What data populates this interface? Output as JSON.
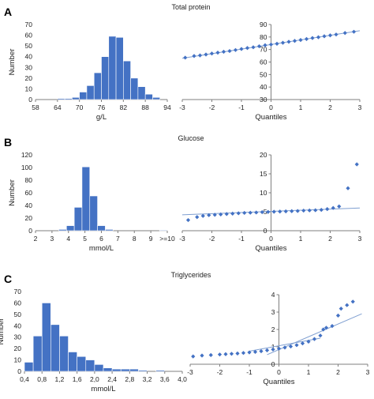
{
  "colors": {
    "bar": "#4472c4",
    "bar_edge": "#ffffff",
    "point": "#4472c4",
    "line": "#7f9fd1",
    "axis": "#7f7f7f"
  },
  "panels": [
    {
      "label": "A",
      "title": "Total protein"
    },
    {
      "label": "B",
      "title": "Glucose"
    },
    {
      "label": "C",
      "title": "Triglycerides"
    }
  ],
  "chart_data": [
    {
      "type": "bar",
      "panel": "A",
      "xlabel": "g/L",
      "ylabel": "Number",
      "ylim": [
        0,
        70
      ],
      "yticks": [
        0,
        10,
        20,
        30,
        40,
        50,
        60,
        70
      ],
      "xtick_labels": [
        "58",
        "64",
        "70",
        "76",
        "82",
        "88",
        "94"
      ],
      "bin_start": 58,
      "bin_width": 2,
      "values": [
        0,
        0,
        0,
        1,
        1,
        2,
        7,
        13,
        25,
        40,
        59,
        58,
        36,
        20,
        12,
        5,
        2,
        0
      ]
    },
    {
      "type": "scatter",
      "panel": "A",
      "xlabel": "Quantiles",
      "xlim": [
        -3,
        3
      ],
      "ylim": [
        30,
        90
      ],
      "xticks": [
        -3,
        -2,
        -1,
        0,
        1,
        2,
        3
      ],
      "yticks": [
        30,
        40,
        50,
        60,
        70,
        80,
        90
      ],
      "points": [
        [
          -2.9,
          63.5
        ],
        [
          -2.6,
          64.8
        ],
        [
          -2.4,
          65.3
        ],
        [
          -2.2,
          66.0
        ],
        [
          -2.0,
          66.8
        ],
        [
          -1.8,
          67.5
        ],
        [
          -1.6,
          68.2
        ],
        [
          -1.4,
          68.8
        ],
        [
          -1.2,
          69.6
        ],
        [
          -1.0,
          70.4
        ],
        [
          -0.8,
          71.2
        ],
        [
          -0.6,
          71.8
        ],
        [
          -0.4,
          72.6
        ],
        [
          -0.2,
          73.4
        ],
        [
          0.0,
          74.0
        ],
        [
          0.2,
          74.6
        ],
        [
          0.4,
          75.4
        ],
        [
          0.6,
          76.2
        ],
        [
          0.8,
          76.9
        ],
        [
          1.0,
          77.6
        ],
        [
          1.2,
          78.4
        ],
        [
          1.4,
          79.2
        ],
        [
          1.6,
          79.8
        ],
        [
          1.8,
          80.6
        ],
        [
          2.0,
          81.3
        ],
        [
          2.2,
          82.0
        ],
        [
          2.5,
          83.2
        ],
        [
          2.8,
          84.2
        ]
      ],
      "fit_line": [
        [
          -3,
          63.0
        ],
        [
          3,
          85.0
        ]
      ]
    },
    {
      "type": "bar",
      "panel": "B",
      "xlabel": "mmol/L",
      "ylabel": "Number",
      "ylim": [
        0,
        120
      ],
      "yticks": [
        0,
        20,
        40,
        60,
        80,
        100,
        120
      ],
      "xtick_labels": [
        "2",
        "3",
        "4",
        "5",
        "6",
        "7",
        "8",
        "9",
        ">=10"
      ],
      "bin_start": 2,
      "bin_width": 0.5,
      "values": [
        0,
        0,
        0,
        2,
        8,
        37,
        101,
        55,
        8,
        2,
        0,
        0,
        0,
        0,
        0,
        0,
        1
      ]
    },
    {
      "type": "scatter",
      "panel": "B",
      "xlabel": "Quantiles",
      "xlim": [
        -3,
        3
      ],
      "ylim": [
        0,
        20
      ],
      "xticks": [
        -3,
        -2,
        -1,
        0,
        1,
        2,
        3
      ],
      "yticks": [
        0,
        5,
        10,
        15,
        20
      ],
      "points": [
        [
          -2.8,
          2.8
        ],
        [
          -2.5,
          3.6
        ],
        [
          -2.3,
          3.9
        ],
        [
          -2.1,
          4.1
        ],
        [
          -1.9,
          4.2
        ],
        [
          -1.7,
          4.3
        ],
        [
          -1.5,
          4.4
        ],
        [
          -1.3,
          4.5
        ],
        [
          -1.1,
          4.6
        ],
        [
          -0.9,
          4.7
        ],
        [
          -0.7,
          4.75
        ],
        [
          -0.5,
          4.8
        ],
        [
          -0.3,
          4.9
        ],
        [
          -0.1,
          4.95
        ],
        [
          0.1,
          5.0
        ],
        [
          0.3,
          5.05
        ],
        [
          0.5,
          5.1
        ],
        [
          0.7,
          5.15
        ],
        [
          0.9,
          5.2
        ],
        [
          1.1,
          5.3
        ],
        [
          1.3,
          5.35
        ],
        [
          1.5,
          5.4
        ],
        [
          1.7,
          5.5
        ],
        [
          1.9,
          5.7
        ],
        [
          2.1,
          6.0
        ],
        [
          2.3,
          6.4
        ],
        [
          2.6,
          11.2
        ],
        [
          2.9,
          17.5
        ]
      ],
      "fit_line": [
        [
          -3,
          4.2
        ],
        [
          3,
          6.0
        ]
      ]
    },
    {
      "type": "bar",
      "panel": "C",
      "xlabel": "mmol/L",
      "ylabel": "Number",
      "ylim": [
        0,
        70
      ],
      "yticks": [
        0,
        10,
        20,
        30,
        40,
        50,
        60,
        70
      ],
      "xtick_labels": [
        "0,4",
        "0,8",
        "1,2",
        "1,6",
        "2,0",
        "2,4",
        "2,8",
        "3,2",
        "3,6",
        "4,0"
      ],
      "bin_start": 0.4,
      "bin_width": 0.2,
      "values": [
        8,
        31,
        60,
        41,
        31,
        17,
        13,
        10,
        6,
        3,
        2,
        2,
        2,
        1,
        0,
        1,
        0,
        0
      ]
    },
    {
      "type": "scatter",
      "panel": "C",
      "xlabel": "Quantiles",
      "xlim": [
        -3,
        3
      ],
      "ylim": [
        0,
        4
      ],
      "xticks": [
        -3,
        -2,
        -1,
        0,
        1,
        2,
        3
      ],
      "yticks": [
        0,
        1,
        2,
        3,
        4
      ],
      "points": [
        [
          -2.9,
          0.45
        ],
        [
          -2.6,
          0.5
        ],
        [
          -2.3,
          0.53
        ],
        [
          -2.0,
          0.56
        ],
        [
          -1.8,
          0.58
        ],
        [
          -1.6,
          0.6
        ],
        [
          -1.4,
          0.62
        ],
        [
          -1.2,
          0.65
        ],
        [
          -1.0,
          0.68
        ],
        [
          -0.8,
          0.71
        ],
        [
          -0.6,
          0.75
        ],
        [
          -0.4,
          0.8
        ],
        [
          -0.2,
          0.85
        ],
        [
          0.0,
          0.9
        ],
        [
          0.2,
          0.96
        ],
        [
          0.4,
          1.02
        ],
        [
          0.6,
          1.1
        ],
        [
          0.8,
          1.2
        ],
        [
          1.0,
          1.3
        ],
        [
          1.2,
          1.45
        ],
        [
          1.4,
          1.65
        ],
        [
          1.5,
          2.0
        ],
        [
          1.6,
          2.1
        ],
        [
          1.8,
          2.2
        ],
        [
          2.0,
          2.8
        ],
        [
          2.1,
          3.2
        ],
        [
          2.3,
          3.4
        ],
        [
          2.5,
          3.6
        ]
      ],
      "fit_line": [
        [
          -0.4,
          0.55
        ],
        [
          2.8,
          2.9
        ]
      ],
      "fit_line_2": [
        [
          -1.0,
          0.75
        ],
        [
          1.4,
          1.5
        ]
      ]
    }
  ]
}
